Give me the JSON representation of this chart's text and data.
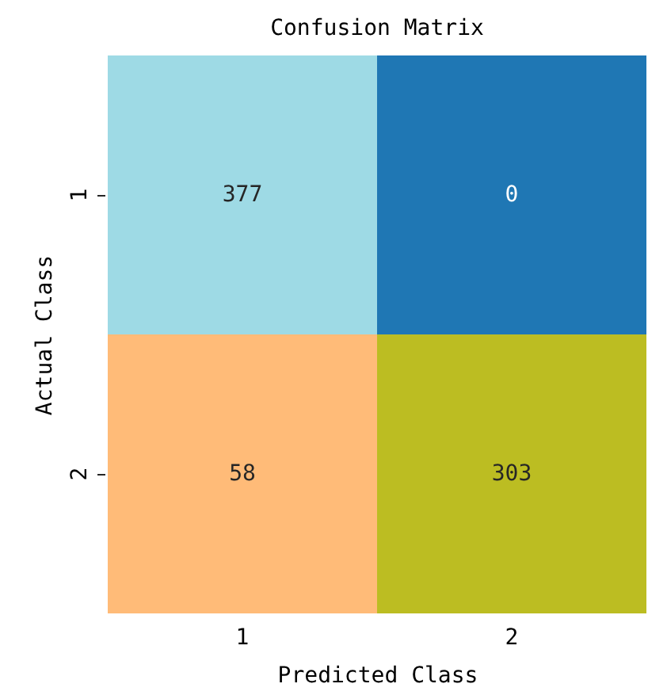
{
  "chart_data": {
    "type": "heatmap",
    "title": "Confusion Matrix",
    "xlabel": "Predicted Class",
    "ylabel": "Actual Class",
    "categories": [
      "1",
      "2"
    ],
    "y_categories": [
      "1",
      "2"
    ],
    "cells": [
      [
        377,
        0
      ],
      [
        58,
        303
      ]
    ],
    "colors": [
      [
        "#9edae5",
        "#1f77b4"
      ],
      [
        "#ffbb78",
        "#bcbd22"
      ]
    ],
    "data_labels": true
  }
}
